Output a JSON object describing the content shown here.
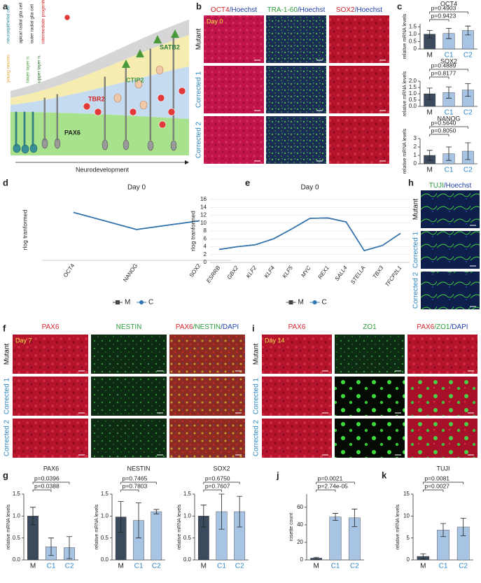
{
  "panel_labels": [
    "a",
    "b",
    "c",
    "d",
    "e",
    "f",
    "g",
    "h",
    "i",
    "j",
    "k"
  ],
  "panel_a": {
    "cell_types": [
      "neuroepithelial cell",
      "apical radial glia cell",
      "outer radial glia cell",
      "intermediate progenitor",
      "young neuron",
      "lower layer n.",
      "upper layer n."
    ],
    "markers": [
      "SATB2",
      "CTIP2",
      "TBR2",
      "PAX6"
    ],
    "axis_label": "Neurodevelopment"
  },
  "panel_b": {
    "columns": [
      [
        {
          "text": "OCT4",
          "color": "#d2232a"
        },
        {
          "text": "/Hoechst",
          "color": "#1f3fa8"
        }
      ],
      [
        {
          "text": "TRA-1-60",
          "color": "#2a9a3a"
        },
        {
          "text": "/Hoechst",
          "color": "#1f3fa8"
        }
      ],
      [
        {
          "text": "SOX2",
          "color": "#d2232a"
        },
        {
          "text": "/Hoechst",
          "color": "#1f3fa8"
        }
      ]
    ],
    "rows": [
      "Mutant",
      "Corrected 1",
      "Corrected 2"
    ],
    "day": "Day 0"
  },
  "panel_h": {
    "columns": [
      [
        {
          "text": "TUJI",
          "color": "#2a9a3a"
        },
        {
          "text": "/Hoechst",
          "color": "#1f3fa8"
        }
      ]
    ],
    "rows": [
      "Mutant",
      "Corrected 1",
      "Corrected 2"
    ]
  },
  "panel_f": {
    "columns": [
      [
        {
          "text": "PAX6",
          "color": "#d2232a"
        }
      ],
      [
        {
          "text": "NESTIN",
          "color": "#2a9a3a"
        }
      ],
      [
        {
          "text": "PAX6",
          "color": "#d2232a"
        },
        {
          "text": "/NESTIN",
          "color": "#2a9a3a"
        },
        {
          "text": "/DAPI",
          "color": "#1f3fa8"
        }
      ]
    ],
    "rows": [
      "Mutant",
      "Corrected 1",
      "Corrected 2"
    ],
    "day": "Day 7"
  },
  "panel_i": {
    "columns": [
      [
        {
          "text": "PAX6",
          "color": "#d2232a"
        }
      ],
      [
        {
          "text": "ZO1",
          "color": "#2a9a3a"
        }
      ],
      [
        {
          "text": "PAX6",
          "color": "#d2232a"
        },
        {
          "text": "/ZO1",
          "color": "#2a9a3a"
        },
        {
          "text": "/DAPI",
          "color": "#1f3fa8"
        }
      ]
    ],
    "rows": [
      "Mutant",
      "Corrected 1",
      "Corrected 2"
    ],
    "day": "Day 14"
  },
  "chart_data": [
    {
      "type": "bar",
      "title": "OCT4",
      "categories": [
        "M",
        "C1",
        "C2"
      ],
      "values": [
        1.0,
        1.05,
        1.25
      ],
      "errors": [
        0.25,
        0.35,
        0.3
      ],
      "colors": [
        "#3b4a5c",
        "#a7c4e5",
        "#a7c4e5"
      ],
      "ylabel": "relative mRNA levels",
      "ylim": [
        0,
        1.7
      ],
      "yticks": [
        0,
        0.5,
        {
          "value": 1,
          "label": "1.0"
        },
        1.5
      ],
      "annotations": [
        "p=0.9423",
        "p=0.4903"
      ]
    },
    {
      "type": "bar",
      "title": "SOX2",
      "categories": [
        "M",
        "C1",
        "C2"
      ],
      "values": [
        1.0,
        1.1,
        1.3
      ],
      "errors": [
        0.45,
        0.45,
        0.5
      ],
      "colors": [
        "#3b4a5c",
        "#a7c4e5",
        "#a7c4e5"
      ],
      "ylabel": "relative mRNA levels",
      "ylim": [
        0,
        2.0
      ],
      "yticks": [
        {
          "value": 0,
          "label": "0.0"
        },
        0.5,
        {
          "value": 1,
          "label": "1.0"
        },
        1.5,
        {
          "value": 2,
          "label": "2.0"
        }
      ],
      "annotations": [
        "p=0.8177",
        "p=0.4889"
      ]
    },
    {
      "type": "bar",
      "title": "NANOG",
      "categories": [
        "M",
        "C1",
        "C2"
      ],
      "values": [
        1.0,
        1.2,
        1.5
      ],
      "errors": [
        0.6,
        0.8,
        1.0
      ],
      "colors": [
        "#3b4a5c",
        "#a7c4e5",
        "#a7c4e5"
      ],
      "ylabel": "relative mRNA levels",
      "ylim": [
        0,
        3
      ],
      "yticks": [
        0,
        1,
        2,
        3
      ],
      "annotations": [
        "p=0.8050",
        "p=0.5640"
      ]
    },
    {
      "type": "line",
      "title": "Day 0",
      "categories": [
        "OCT4",
        "NANOG",
        "SOX2"
      ],
      "ylabel": "rlog tranformed",
      "ylim": [
        0,
        16
      ],
      "series": [
        {
          "name": "M",
          "color": "#444444",
          "values": [
            12.6,
            8.1,
            10.4
          ]
        },
        {
          "name": "C",
          "color": "#2f75b5",
          "values": [
            12.6,
            8.1,
            10.4
          ]
        }
      ]
    },
    {
      "type": "line",
      "title": "Day 0",
      "categories": [
        "ESRRB",
        "GBX2",
        "KLF2",
        "KLF4",
        "KLF5",
        "MYC",
        "REX1",
        "SALL4",
        "STELLA",
        "TBX3",
        "TFCP2L1"
      ],
      "ylabel": "rlog tranformed",
      "ylim": [
        0,
        16
      ],
      "yticks": [
        0,
        2,
        4,
        6,
        8,
        10,
        12,
        14,
        16
      ],
      "grid": true,
      "series": [
        {
          "name": "M",
          "color": "#444444",
          "values": [
            3.3,
            4.0,
            4.5,
            6.0,
            8.5,
            11.2,
            11.3,
            10.3,
            3.0,
            4.3,
            7.4
          ]
        },
        {
          "name": "C",
          "color": "#2f75b5",
          "values": [
            3.3,
            4.0,
            4.5,
            6.0,
            8.5,
            11.2,
            11.3,
            10.3,
            3.0,
            4.3,
            7.4
          ]
        }
      ]
    },
    {
      "type": "bar",
      "title": "PAX6",
      "categories": [
        "M",
        "C1",
        "C2"
      ],
      "values": [
        1.0,
        0.3,
        0.28
      ],
      "errors": [
        0.2,
        0.2,
        0.25
      ],
      "colors": [
        "#3b4a5c",
        "#a7c4e5",
        "#a7c4e5"
      ],
      "ylabel": "relative mRNA levels",
      "ylim": [
        0,
        1.5
      ],
      "yticks": [
        {
          "value": 0,
          "label": "0.0"
        },
        0.5,
        {
          "value": 1,
          "label": "1.0"
        },
        1.5
      ],
      "annotations": [
        "p=0.0388",
        "p=0.0396"
      ]
    },
    {
      "type": "bar",
      "title": "NESTIN",
      "categories": [
        "M",
        "C1",
        "C2"
      ],
      "values": [
        0.98,
        0.9,
        1.1
      ],
      "errors": [
        0.35,
        0.4,
        0.05
      ],
      "colors": [
        "#3b4a5c",
        "#a7c4e5",
        "#a7c4e5"
      ],
      "ylabel": "relative mRNA levels",
      "ylim": [
        0,
        1.5
      ],
      "yticks": [
        {
          "value": 0,
          "label": "0.0"
        },
        0.5,
        {
          "value": 1,
          "label": "1.0"
        },
        1.5
      ],
      "annotations": [
        "p=0.7803",
        "p=0.7465"
      ]
    },
    {
      "type": "bar",
      "title": "SOX2",
      "categories": [
        "M",
        "C1",
        "C2"
      ],
      "values": [
        1.0,
        1.1,
        1.1
      ],
      "errors": [
        0.25,
        0.4,
        0.35
      ],
      "colors": [
        "#3b4a5c",
        "#a7c4e5",
        "#a7c4e5"
      ],
      "ylabel": "relative mRNA levels",
      "ylim": [
        0,
        1.5
      ],
      "yticks": [
        {
          "value": 0,
          "label": "0.0"
        },
        0.5,
        {
          "value": 1,
          "label": "1.0"
        },
        1.5
      ],
      "annotations": [
        "p=0.7607",
        "p=0.6750"
      ]
    },
    {
      "type": "bar",
      "categories": [
        "M",
        "C1",
        "C2"
      ],
      "values": [
        2,
        49,
        48
      ],
      "errors": [
        1,
        4,
        10
      ],
      "colors": [
        "#3b4a5c",
        "#a7c4e5",
        "#a7c4e5"
      ],
      "ylabel": "rosette count",
      "ylim": [
        0,
        75
      ],
      "yticks": [
        0,
        20,
        40,
        60
      ],
      "annotations": [
        "p=2.74e-05",
        "p=0.0021"
      ]
    },
    {
      "type": "bar",
      "title": "TUJI",
      "categories": [
        "M",
        "C1",
        "C2"
      ],
      "values": [
        0.8,
        6.8,
        7.5
      ],
      "errors": [
        0.6,
        1.5,
        2.0
      ],
      "colors": [
        "#3b4a5c",
        "#a7c4e5",
        "#a7c4e5"
      ],
      "ylabel": "relative mRNA levels",
      "ylim": [
        0,
        15
      ],
      "yticks": [
        0,
        5,
        10,
        15
      ],
      "annotations": [
        "p=0.0027",
        "p=0.0081"
      ]
    }
  ]
}
